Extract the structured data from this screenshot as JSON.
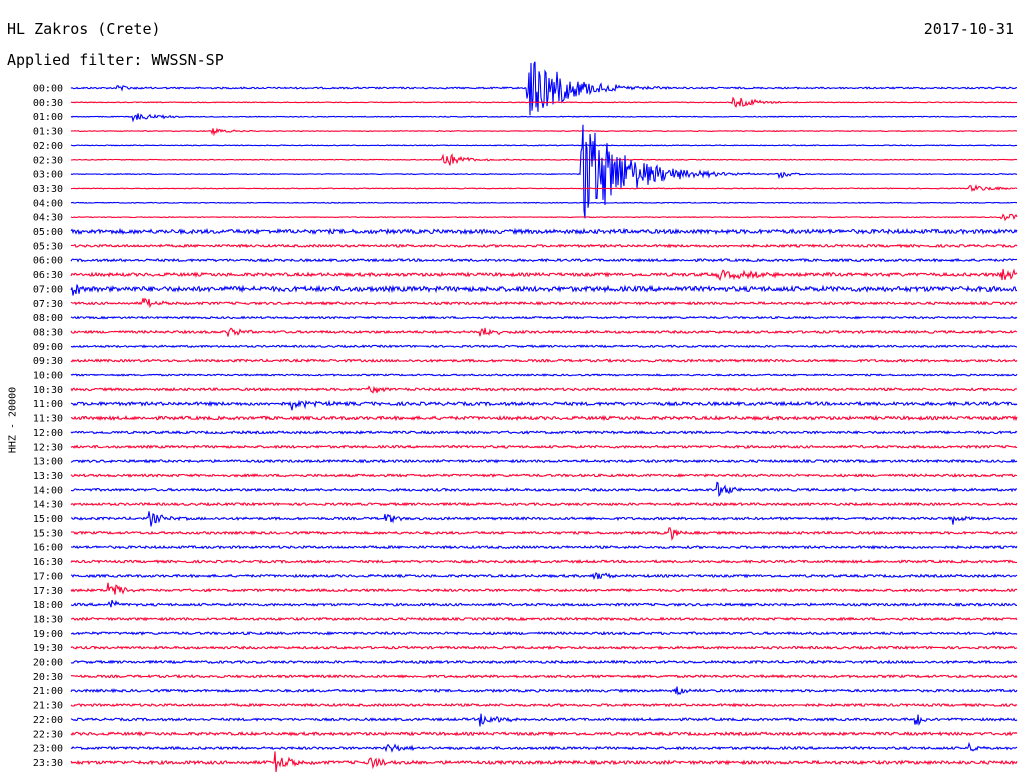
{
  "header": {
    "station": "HL Zakros (Crete)",
    "date": "2017-10-31",
    "filter": "Applied filter: WWSSN-SP"
  },
  "colors": {
    "even_trace": "#0000ff",
    "odd_trace": "#ff0033"
  },
  "chart_data": {
    "type": "line",
    "title": "HL Zakros (Crete)",
    "ylabel": "HHZ - 20000",
    "xlabel": "",
    "tick_labels": [
      "00:00",
      "00:30",
      "01:00",
      "01:30",
      "02:00",
      "02:30",
      "03:00",
      "03:30",
      "04:00",
      "04:30",
      "05:00",
      "05:30",
      "06:00",
      "06:30",
      "07:00",
      "07:30",
      "08:00",
      "08:30",
      "09:00",
      "09:30",
      "10:00",
      "10:30",
      "11:00",
      "11:30",
      "12:00",
      "12:30",
      "13:00",
      "13:30",
      "14:00",
      "14:30",
      "15:00",
      "15:30",
      "16:00",
      "16:30",
      "17:00",
      "17:30",
      "18:00",
      "18:30",
      "19:00",
      "19:30",
      "20:00",
      "20:30",
      "21:00",
      "21:30",
      "22:00",
      "22:30",
      "23:00",
      "23:30"
    ],
    "trace_minutes": 30,
    "trace_color_pattern": [
      "blue",
      "red"
    ],
    "noise_level": [
      1,
      0.5,
      0.5,
      0.5,
      0.5,
      0.5,
      0.5,
      0.5,
      0.5,
      0.5,
      2.5,
      1.5,
      1.5,
      2,
      3,
      1.5,
      1.2,
      1.5,
      1.2,
      1.5,
      1,
      1.5,
      2,
      2,
      1.5,
      1.5,
      1.5,
      1.5,
      1.5,
      1.5,
      1.5,
      1.5,
      1.5,
      1.5,
      1.5,
      1.5,
      1.5,
      1.5,
      1.5,
      1.5,
      1.5,
      1.5,
      1.5,
      1.5,
      1.5,
      1.8,
      1.5,
      2
    ],
    "events": [
      {
        "trace": 0,
        "minute": 14.5,
        "amplitude": 42,
        "duration": 2.0
      },
      {
        "trace": 0,
        "minute": 1.5,
        "amplitude": 3,
        "duration": 0.8
      },
      {
        "trace": 1,
        "minute": 21.0,
        "amplitude": 8,
        "duration": 1.2
      },
      {
        "trace": 2,
        "minute": 2.0,
        "amplitude": 4,
        "duration": 1.5
      },
      {
        "trace": 3,
        "minute": 4.5,
        "amplitude": 3,
        "duration": 1.0
      },
      {
        "trace": 5,
        "minute": 11.8,
        "amplitude": 8,
        "duration": 1.2
      },
      {
        "trace": 6,
        "minute": 16.2,
        "amplitude": 60,
        "duration": 2.5
      },
      {
        "trace": 6,
        "minute": 22.5,
        "amplitude": 4,
        "duration": 0.8
      },
      {
        "trace": 7,
        "minute": 28.5,
        "amplitude": 3,
        "duration": 2.0
      },
      {
        "trace": 9,
        "minute": 29.5,
        "amplitude": 4,
        "duration": 1.5
      },
      {
        "trace": 13,
        "minute": 29.5,
        "amplitude": 7,
        "duration": 1.5
      },
      {
        "trace": 13,
        "minute": 20.5,
        "amplitude": 4,
        "duration": 3.0
      },
      {
        "trace": 14,
        "minute": 0.1,
        "amplitude": 7,
        "duration": 0.5
      },
      {
        "trace": 15,
        "minute": 2.3,
        "amplitude": 5,
        "duration": 0.8
      },
      {
        "trace": 17,
        "minute": 5.0,
        "amplitude": 7,
        "duration": 0.6
      },
      {
        "trace": 17,
        "minute": 13.0,
        "amplitude": 8,
        "duration": 0.6
      },
      {
        "trace": 21,
        "minute": 9.5,
        "amplitude": 6,
        "duration": 0.6
      },
      {
        "trace": 22,
        "minute": 7.0,
        "amplitude": 6,
        "duration": 1.0
      },
      {
        "trace": 28,
        "minute": 20.5,
        "amplitude": 8,
        "duration": 0.7
      },
      {
        "trace": 30,
        "minute": 2.5,
        "amplitude": 8,
        "duration": 0.7
      },
      {
        "trace": 30,
        "minute": 10.0,
        "amplitude": 5,
        "duration": 0.6
      },
      {
        "trace": 30,
        "minute": 28.0,
        "amplitude": 6,
        "duration": 0.6
      },
      {
        "trace": 31,
        "minute": 19.0,
        "amplitude": 7,
        "duration": 0.5
      },
      {
        "trace": 34,
        "minute": 16.6,
        "amplitude": 5,
        "duration": 0.8
      },
      {
        "trace": 35,
        "minute": 1.2,
        "amplitude": 10,
        "duration": 0.6
      },
      {
        "trace": 36,
        "minute": 1.2,
        "amplitude": 8,
        "duration": 0.4
      },
      {
        "trace": 42,
        "minute": 19.2,
        "amplitude": 6,
        "duration": 0.5
      },
      {
        "trace": 44,
        "minute": 13.0,
        "amplitude": 7,
        "duration": 1.0
      },
      {
        "trace": 44,
        "minute": 26.8,
        "amplitude": 7,
        "duration": 0.5
      },
      {
        "trace": 46,
        "minute": 10.0,
        "amplitude": 5,
        "duration": 1.0
      },
      {
        "trace": 46,
        "minute": 28.5,
        "amplitude": 5,
        "duration": 0.5
      },
      {
        "trace": 47,
        "minute": 6.5,
        "amplitude": 10,
        "duration": 0.8
      },
      {
        "trace": 47,
        "minute": 9.5,
        "amplitude": 6,
        "duration": 0.8
      }
    ]
  }
}
